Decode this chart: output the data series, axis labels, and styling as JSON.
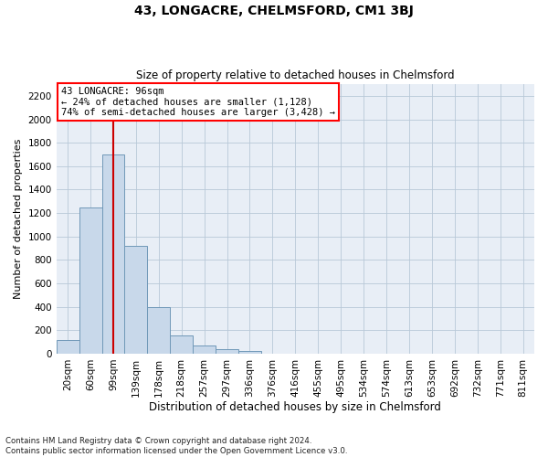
{
  "title": "43, LONGACRE, CHELMSFORD, CM1 3BJ",
  "subtitle": "Size of property relative to detached houses in Chelmsford",
  "xlabel": "Distribution of detached houses by size in Chelmsford",
  "ylabel": "Number of detached properties",
  "footnote1": "Contains HM Land Registry data © Crown copyright and database right 2024.",
  "footnote2": "Contains public sector information licensed under the Open Government Licence v3.0.",
  "annotation_line1": "43 LONGACRE: 96sqm",
  "annotation_line2": "← 24% of detached houses are smaller (1,128)",
  "annotation_line3": "74% of semi-detached houses are larger (3,428) →",
  "bar_color": "#c8d8ea",
  "bar_edge_color": "#7098b8",
  "redline_color": "#cc0000",
  "redline_x": 2,
  "categories": [
    "20sqm",
    "60sqm",
    "99sqm",
    "139sqm",
    "178sqm",
    "218sqm",
    "257sqm",
    "297sqm",
    "336sqm",
    "376sqm",
    "416sqm",
    "455sqm",
    "495sqm",
    "534sqm",
    "574sqm",
    "613sqm",
    "653sqm",
    "692sqm",
    "732sqm",
    "771sqm",
    "811sqm"
  ],
  "bar_heights": [
    115,
    1250,
    1700,
    920,
    400,
    155,
    70,
    38,
    25,
    0,
    0,
    0,
    0,
    0,
    0,
    0,
    0,
    0,
    0,
    0,
    0
  ],
  "ylim_max": 2300,
  "yticks": [
    0,
    200,
    400,
    600,
    800,
    1000,
    1200,
    1400,
    1600,
    1800,
    2000,
    2200
  ],
  "grid_color": "#b8c8d8",
  "bg_color": "#e8eef6",
  "title_fontsize": 10,
  "subtitle_fontsize": 8.5,
  "ylabel_fontsize": 8,
  "xlabel_fontsize": 8.5,
  "tick_fontsize": 7.5,
  "annot_fontsize": 7.5,
  "footnote_fontsize": 6.2
}
